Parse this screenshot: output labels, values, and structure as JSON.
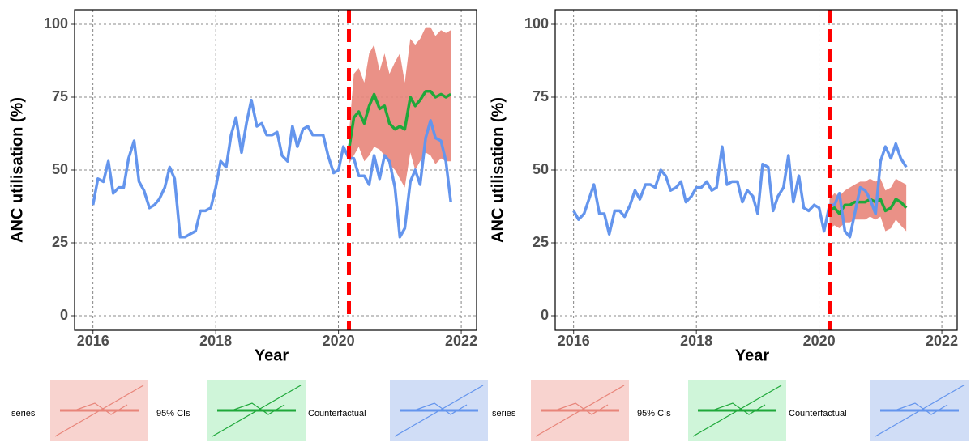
{
  "chart_data": [
    {
      "type": "line",
      "xlabel": "Year",
      "ylabel": "ANC utilisation (%)",
      "legend_title": "series",
      "xlim": [
        2015.7,
        2022.25
      ],
      "ylim": [
        -5,
        105
      ],
      "xticks": [
        2016,
        2018,
        2020,
        2022
      ],
      "yticks": [
        0,
        25,
        50,
        75,
        100
      ],
      "grid": true,
      "vline": {
        "x": 2020.17,
        "color": "#ff0000"
      },
      "series": [
        {
          "name": "95% CIs",
          "type": "band",
          "color": "#e8857a",
          "x": [
            2020.17,
            2020.25,
            2020.33,
            2020.42,
            2020.5,
            2020.58,
            2020.67,
            2020.75,
            2020.83,
            2020.92,
            2021,
            2021.08,
            2021.17,
            2021.25,
            2021.33,
            2021.42,
            2021.5,
            2021.58,
            2021.67,
            2021.75,
            2021.83
          ],
          "values": [
            62,
            83,
            85,
            80,
            90,
            93,
            84,
            90,
            83,
            87,
            90,
            80,
            95,
            93,
            95,
            99,
            99,
            96,
            98,
            97,
            98
          ],
          "lower": [
            52,
            55,
            58,
            53,
            55,
            58,
            57,
            55,
            52,
            50,
            47,
            44,
            56,
            50,
            53,
            56,
            55,
            52,
            54,
            53,
            53
          ]
        },
        {
          "name": "Counterfactual",
          "type": "line",
          "color": "#1fa83a",
          "x": [
            2020.17,
            2020.25,
            2020.33,
            2020.42,
            2020.5,
            2020.58,
            2020.67,
            2020.75,
            2020.83,
            2020.92,
            2021,
            2021.08,
            2021.17,
            2021.25,
            2021.33,
            2021.42,
            2021.5,
            2021.58,
            2021.67,
            2021.75,
            2021.83
          ],
          "values": [
            57,
            68,
            70,
            66,
            72,
            76,
            71,
            72,
            66,
            64,
            65,
            64,
            75,
            72,
            74,
            77,
            77,
            75,
            76,
            75,
            76
          ]
        },
        {
          "type": "line",
          "color": "#6495ed",
          "x": [
            2016,
            2016.08,
            2016.17,
            2016.25,
            2016.33,
            2016.42,
            2016.5,
            2016.58,
            2016.67,
            2016.75,
            2016.83,
            2016.92,
            2017,
            2017.08,
            2017.17,
            2017.25,
            2017.33,
            2017.42,
            2017.5,
            2017.58,
            2017.67,
            2017.75,
            2017.83,
            2017.92,
            2018,
            2018.08,
            2018.17,
            2018.25,
            2018.33,
            2018.42,
            2018.5,
            2018.58,
            2018.67,
            2018.75,
            2018.83,
            2018.92,
            2019,
            2019.08,
            2019.17,
            2019.25,
            2019.33,
            2019.42,
            2019.5,
            2019.58,
            2019.67,
            2019.75,
            2019.83,
            2019.92,
            2020,
            2020.08,
            2020.17,
            2020.25,
            2020.33,
            2020.42,
            2020.5,
            2020.58,
            2020.67,
            2020.75,
            2020.83,
            2020.92,
            2021,
            2021.08,
            2021.17,
            2021.25,
            2021.33,
            2021.42,
            2021.5,
            2021.58,
            2021.67,
            2021.75,
            2021.83
          ],
          "values": [
            38,
            47,
            46,
            53,
            42,
            44,
            44,
            54,
            60,
            46,
            43,
            37,
            38,
            40,
            44,
            51,
            47,
            27,
            27,
            28,
            29,
            36,
            36,
            37,
            44,
            53,
            51,
            62,
            68,
            56,
            66,
            74,
            65,
            66,
            62,
            62,
            63,
            55,
            53,
            65,
            58,
            64,
            65,
            62,
            62,
            62,
            55,
            49,
            50,
            58,
            54,
            54,
            48,
            48,
            45,
            55,
            47,
            55,
            53,
            44,
            27,
            30,
            46,
            50,
            45,
            61,
            67,
            61,
            60,
            53,
            39
          ]
        }
      ]
    },
    {
      "type": "line",
      "xlabel": "Year",
      "ylabel": "ANC utilisation (%)",
      "legend_title": "series",
      "xlim": [
        2015.7,
        2022.25
      ],
      "ylim": [
        -5,
        105
      ],
      "xticks": [
        2016,
        2018,
        2020,
        2022
      ],
      "yticks": [
        0,
        25,
        50,
        75,
        100
      ],
      "grid": true,
      "vline": {
        "x": 2020.17,
        "color": "#ff0000"
      },
      "series": [
        {
          "name": "95% CIs",
          "type": "band",
          "color": "#e8857a",
          "x": [
            2020.17,
            2020.25,
            2020.33,
            2020.42,
            2020.5,
            2020.58,
            2020.67,
            2020.75,
            2020.83,
            2020.92,
            2021,
            2021.08,
            2021.17,
            2021.25,
            2021.33,
            2021.42
          ],
          "values": [
            40,
            42,
            41,
            43,
            44,
            45,
            46,
            46,
            47,
            46,
            47,
            43,
            44,
            47,
            46,
            45
          ],
          "lower": [
            30,
            31,
            30,
            32,
            32,
            33,
            33,
            33,
            34,
            33,
            34,
            29,
            30,
            33,
            31,
            29
          ]
        },
        {
          "name": "Counterfactual",
          "type": "line",
          "color": "#1fa83a",
          "x": [
            2020.17,
            2020.25,
            2020.33,
            2020.42,
            2020.5,
            2020.58,
            2020.67,
            2020.75,
            2020.83,
            2020.92,
            2021,
            2021.08,
            2021.17,
            2021.25,
            2021.33,
            2021.42
          ],
          "values": [
            36,
            37,
            35,
            38,
            38,
            39,
            39,
            39,
            40,
            39,
            40,
            36,
            37,
            40,
            39,
            37
          ]
        },
        {
          "type": "line",
          "color": "#6495ed",
          "x": [
            2016,
            2016.08,
            2016.17,
            2016.25,
            2016.33,
            2016.42,
            2016.5,
            2016.58,
            2016.67,
            2016.75,
            2016.83,
            2016.92,
            2017,
            2017.08,
            2017.17,
            2017.25,
            2017.33,
            2017.42,
            2017.5,
            2017.58,
            2017.67,
            2017.75,
            2017.83,
            2017.92,
            2018,
            2018.08,
            2018.17,
            2018.25,
            2018.33,
            2018.42,
            2018.5,
            2018.58,
            2018.67,
            2018.75,
            2018.83,
            2018.92,
            2019,
            2019.08,
            2019.17,
            2019.25,
            2019.33,
            2019.42,
            2019.5,
            2019.58,
            2019.67,
            2019.75,
            2019.83,
            2019.92,
            2020,
            2020.08,
            2020.17,
            2020.25,
            2020.33,
            2020.42,
            2020.5,
            2020.58,
            2020.67,
            2020.75,
            2020.83,
            2020.92,
            2021,
            2021.08,
            2021.17,
            2021.25,
            2021.33,
            2021.42
          ],
          "values": [
            36,
            33,
            35,
            40,
            45,
            35,
            35,
            28,
            36,
            36,
            34,
            38,
            43,
            40,
            45,
            45,
            44,
            50,
            48,
            43,
            44,
            46,
            39,
            41,
            44,
            44,
            46,
            43,
            44,
            58,
            45,
            46,
            46,
            39,
            43,
            41,
            35,
            52,
            51,
            36,
            41,
            44,
            55,
            39,
            48,
            37,
            36,
            38,
            37,
            29,
            38,
            38,
            42,
            29,
            27,
            35,
            44,
            43,
            40,
            35,
            53,
            58,
            54,
            59,
            54,
            51
          ]
        }
      ]
    }
  ]
}
